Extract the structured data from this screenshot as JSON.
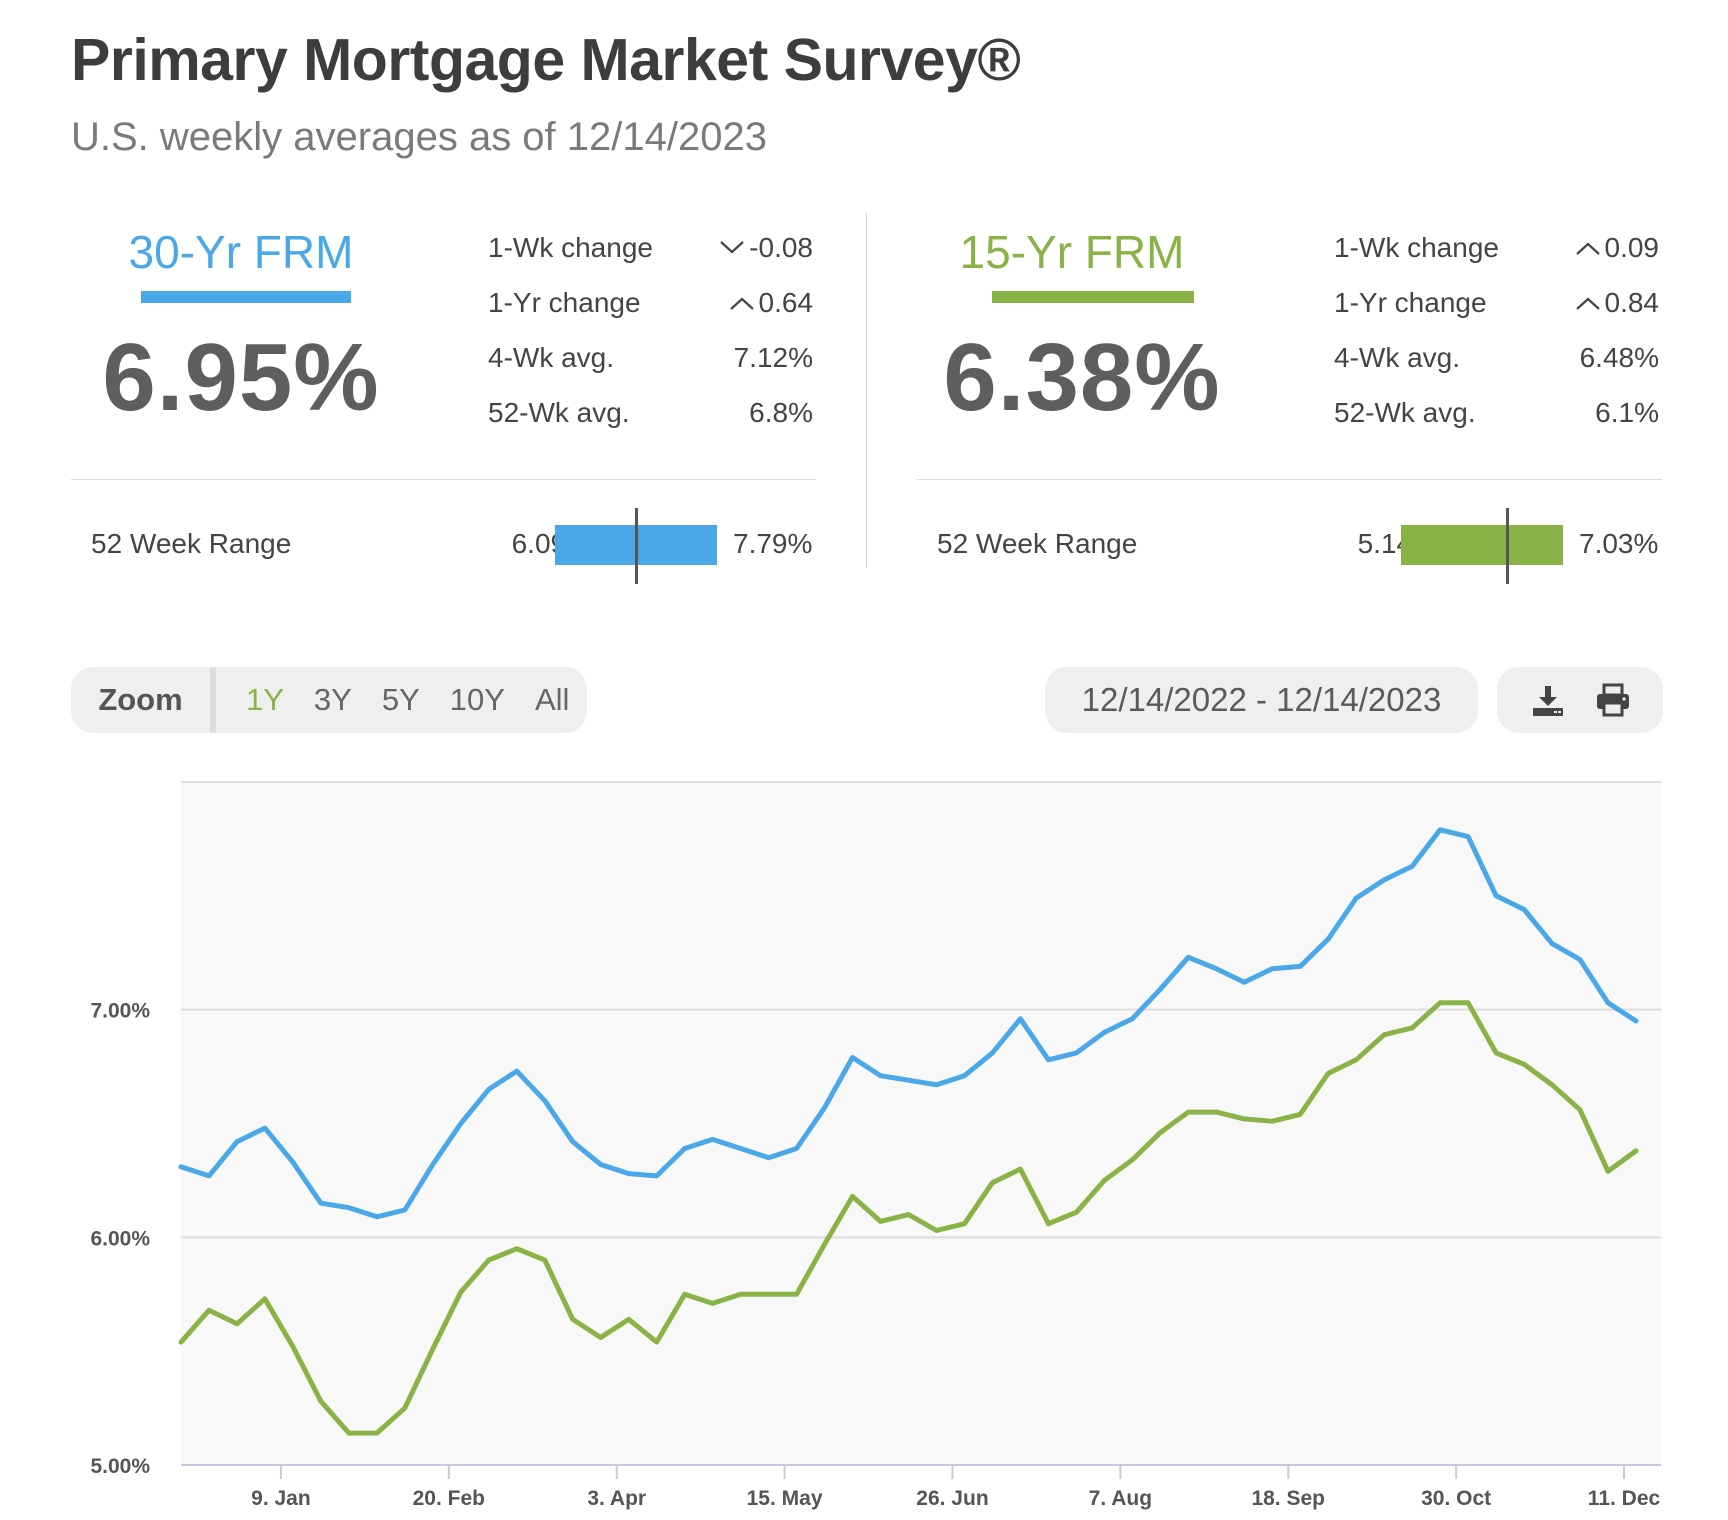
{
  "header": {
    "title": "Primary Mortgage Market Survey®",
    "subtitle": "U.S. weekly averages as of 12/14/2023"
  },
  "products": [
    {
      "label": "30-Yr FRM",
      "rate": "6.95%",
      "color": "#4aa8e8",
      "stats": [
        {
          "label": "1-Wk change",
          "value": "-0.08",
          "direction": "down"
        },
        {
          "label": "1-Yr change",
          "value": "0.64",
          "direction": "up"
        },
        {
          "label": "4-Wk avg.",
          "value": "7.12%",
          "direction": "none"
        },
        {
          "label": "52-Wk avg.",
          "value": "6.8%",
          "direction": "none"
        }
      ],
      "range_label": "52 Week Range",
      "range_min": "6.09%",
      "range_max": "7.79%",
      "range_min_value": 6.09,
      "range_max_value": 7.79,
      "current_value": 6.95
    },
    {
      "label": "15-Yr FRM",
      "rate": "6.38%",
      "color": "#8ab347",
      "stats": [
        {
          "label": "1-Wk change",
          "value": "0.09",
          "direction": "up"
        },
        {
          "label": "1-Yr change",
          "value": "0.84",
          "direction": "up"
        },
        {
          "label": "4-Wk avg.",
          "value": "6.48%",
          "direction": "none"
        },
        {
          "label": "52-Wk avg.",
          "value": "6.1%",
          "direction": "none"
        }
      ],
      "range_label": "52 Week Range",
      "range_min": "5.14%",
      "range_max": "7.03%",
      "range_min_value": 5.14,
      "range_max_value": 7.03,
      "current_value": 6.38
    }
  ],
  "controls": {
    "zoom_label": "Zoom",
    "zoom_options": [
      "1Y",
      "3Y",
      "5Y",
      "10Y",
      "All"
    ],
    "active_zoom": "1Y",
    "date_range": "12/14/2022 - 12/14/2023",
    "icons": [
      "download-icon",
      "print-icon"
    ]
  },
  "chart_data": {
    "type": "line",
    "x_start": "2022-12-15",
    "x_end": "2023-12-14",
    "x_ticks": [
      {
        "date": "2023-01-09",
        "label": "9. Jan"
      },
      {
        "date": "2023-02-20",
        "label": "20. Feb"
      },
      {
        "date": "2023-04-03",
        "label": "3. Apr"
      },
      {
        "date": "2023-05-15",
        "label": "15. May"
      },
      {
        "date": "2023-06-26",
        "label": "26. Jun"
      },
      {
        "date": "2023-08-07",
        "label": "7. Aug"
      },
      {
        "date": "2023-09-18",
        "label": "18. Sep"
      },
      {
        "date": "2023-10-30",
        "label": "30. Oct"
      },
      {
        "date": "2023-12-11",
        "label": "11. Dec"
      }
    ],
    "y_ticks": [
      5.0,
      6.0,
      7.0
    ],
    "y_tick_labels": [
      "5.00%",
      "6.00%",
      "7.00%"
    ],
    "ylim": [
      5.0,
      8.0
    ],
    "grid": true,
    "series": [
      {
        "name": "30-Yr FRM",
        "color": "#4aa8e8",
        "values": [
          6.31,
          6.27,
          6.42,
          6.48,
          6.33,
          6.15,
          6.13,
          6.09,
          6.12,
          6.32,
          6.5,
          6.65,
          6.73,
          6.6,
          6.42,
          6.32,
          6.28,
          6.27,
          6.39,
          6.43,
          6.39,
          6.35,
          6.39,
          6.57,
          6.79,
          6.71,
          6.69,
          6.67,
          6.71,
          6.81,
          6.96,
          6.78,
          6.81,
          6.9,
          6.96,
          7.09,
          7.23,
          7.18,
          7.12,
          7.18,
          7.19,
          7.31,
          7.49,
          7.57,
          7.63,
          7.79,
          7.76,
          7.5,
          7.44,
          7.29,
          7.22,
          7.03,
          6.95
        ]
      },
      {
        "name": "15-Yr FRM",
        "color": "#8ab347",
        "values": [
          5.54,
          5.68,
          5.62,
          5.73,
          5.52,
          5.28,
          5.14,
          5.14,
          5.25,
          5.51,
          5.76,
          5.9,
          5.95,
          5.9,
          5.64,
          5.56,
          5.64,
          5.54,
          5.75,
          5.71,
          5.75,
          5.75,
          5.75,
          5.97,
          6.18,
          6.07,
          6.1,
          6.03,
          6.06,
          6.24,
          6.3,
          6.06,
          6.11,
          6.25,
          6.34,
          6.46,
          6.55,
          6.55,
          6.52,
          6.51,
          6.54,
          6.72,
          6.78,
          6.89,
          6.92,
          7.03,
          7.03,
          6.81,
          6.76,
          6.67,
          6.56,
          6.29,
          6.38
        ]
      }
    ]
  }
}
